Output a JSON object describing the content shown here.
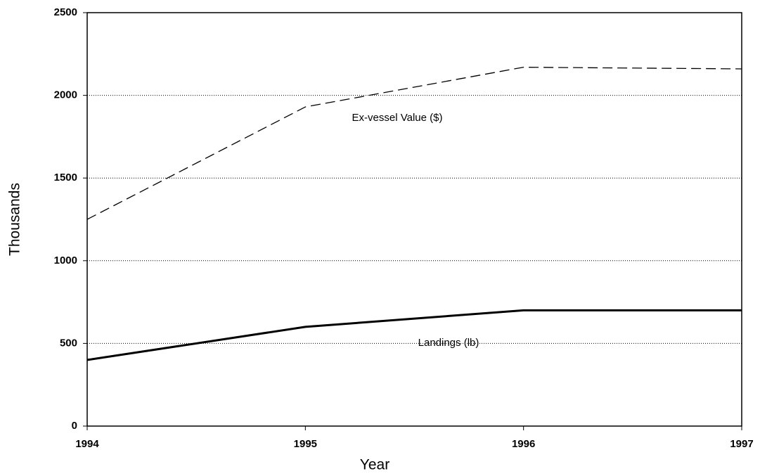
{
  "chart_data": {
    "type": "line",
    "x": [
      1994,
      1995,
      1996,
      1997
    ],
    "series": [
      {
        "name": "Ex-vessel Value ($)",
        "color": "#000000",
        "style": "dashed",
        "values": [
          1250,
          1930,
          2170,
          2160
        ]
      },
      {
        "name": "Landings (lb)",
        "color": "#000000",
        "style": "solid",
        "values": [
          400,
          600,
          700,
          700
        ]
      }
    ],
    "xlabel": "Year",
    "ylabel": "Thousands",
    "xlim": [
      1994,
      1997
    ],
    "xticks": [
      1994,
      1995,
      1996,
      1997
    ],
    "ylim": [
      0,
      2500
    ],
    "yticks": [
      0,
      500,
      1000,
      1500,
      2000,
      2500
    ],
    "grid": true
  }
}
